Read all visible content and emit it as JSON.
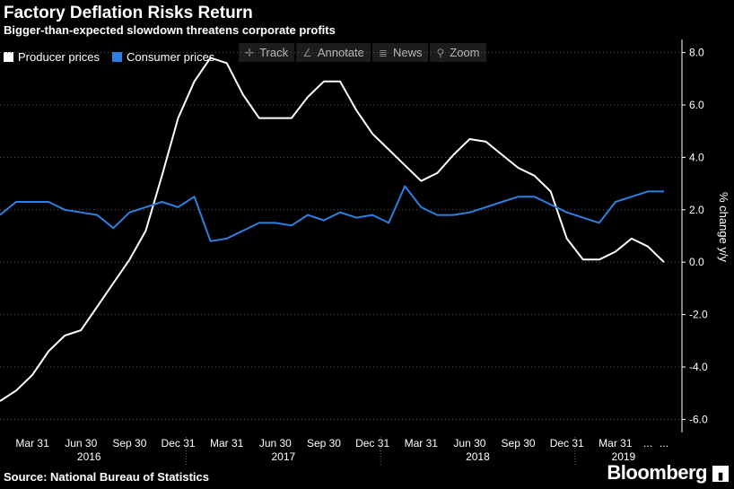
{
  "header": {
    "title": "Factory Deflation Risks Return",
    "subtitle": "Bigger-than-expected slowdown threatens corporate profits"
  },
  "toolbar": [
    {
      "label": "Track",
      "icon": "crosshair-icon",
      "glyph": "✛"
    },
    {
      "label": "Annotate",
      "icon": "pencil-icon",
      "glyph": "∠"
    },
    {
      "label": "News",
      "icon": "news-icon",
      "glyph": "≣"
    },
    {
      "label": "Zoom",
      "icon": "magnifier-icon",
      "glyph": "⚲"
    }
  ],
  "footer": {
    "source": "Source: National Bureau of Statistics",
    "brand": "Bloomberg"
  },
  "chart_data": {
    "type": "line",
    "title": "Factory Deflation Risks Return",
    "subtitle": "Bigger-than-expected slowdown threatens corporate profits",
    "ylabel": "% change y/y",
    "ylim": [
      -6.5,
      8.5
    ],
    "yticks": [
      8.0,
      6.0,
      4.0,
      2.0,
      0.0,
      -2.0,
      -4.0,
      -6.0
    ],
    "ytick_labels": [
      "8.0",
      "6.0",
      "4.0",
      "2.0",
      "0.0",
      "-2.0",
      "-4.0",
      "-6.0"
    ],
    "grid": true,
    "legend_position": "top-left",
    "x_tick_labels": [
      "Mar 31",
      "Jun 30",
      "Sep 30",
      "Dec 31",
      "Mar 31",
      "Jun 30",
      "Sep 30",
      "Dec 31",
      "Mar 31",
      "Jun 30",
      "Sep 30",
      "Dec 31",
      "Mar 31",
      "...",
      "..."
    ],
    "x_tick_months": [
      2,
      5,
      8,
      11,
      14,
      17,
      20,
      23,
      26,
      29,
      32,
      35,
      38,
      40,
      41
    ],
    "year_labels": [
      {
        "label": "2016",
        "center": 5.5
      },
      {
        "label": "2017",
        "center": 17.5
      },
      {
        "label": "2018",
        "center": 29.5
      },
      {
        "label": "2019",
        "center": 38.5
      }
    ],
    "year_boundaries": [
      11.5,
      23.5,
      35.5
    ],
    "x_start": "2016-01",
    "x_end": "2019-06",
    "series": [
      {
        "name": "Producer prices",
        "color": "#ffffff",
        "values": [
          -5.3,
          -4.9,
          -4.3,
          -3.4,
          -2.8,
          -2.6,
          -1.7,
          -0.8,
          0.1,
          1.2,
          3.3,
          5.5,
          6.9,
          7.8,
          7.6,
          6.4,
          5.5,
          5.5,
          5.5,
          6.3,
          6.9,
          6.9,
          5.8,
          4.9,
          4.3,
          3.7,
          3.1,
          3.4,
          4.1,
          4.7,
          4.6,
          4.1,
          3.6,
          3.3,
          2.7,
          0.9,
          0.1,
          0.1,
          0.4,
          0.9,
          0.6,
          0.0
        ]
      },
      {
        "name": "Consumer prices",
        "color": "#2e7fe0",
        "values": [
          1.8,
          2.3,
          2.3,
          2.3,
          2.0,
          1.9,
          1.8,
          1.3,
          1.9,
          2.1,
          2.3,
          2.1,
          2.5,
          0.8,
          0.9,
          1.2,
          1.5,
          1.5,
          1.4,
          1.8,
          1.6,
          1.9,
          1.7,
          1.8,
          1.5,
          2.9,
          2.1,
          1.8,
          1.8,
          1.9,
          2.1,
          2.3,
          2.5,
          2.5,
          2.2,
          1.9,
          1.7,
          1.5,
          2.3,
          2.5,
          2.7,
          2.7
        ]
      }
    ]
  }
}
